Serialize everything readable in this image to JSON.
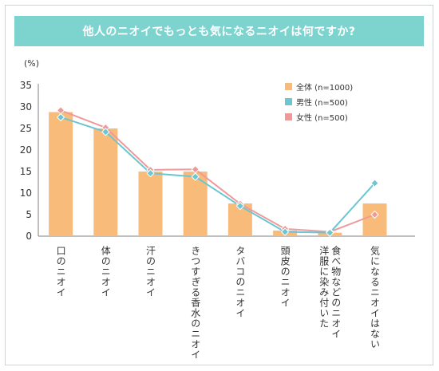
{
  "title": "他人のニオイでもっとも気になるニオイは何ですか?",
  "colors": {
    "banner": "#7dd3ce",
    "overall": "#f9bb79",
    "male": "#6cc6d2",
    "female": "#ee9a9b",
    "axis": "#808080",
    "grid": "#dddddd"
  },
  "chart_data": {
    "type": "bar",
    "y_unit_label": "(%)",
    "ylim": [
      0,
      35
    ],
    "yticks": [
      0,
      5,
      10,
      15,
      20,
      25,
      30,
      35
    ],
    "categories": [
      "口のニオイ",
      "体のニオイ",
      "汗のニオイ",
      "きつすぎる香水のニオイ",
      "タバコのニオイ",
      "頭皮のニオイ",
      "洋服に染み付いた食べ物などのニオイ",
      "気になるニオイはない"
    ],
    "category_lines": [
      [
        "口のニオイ"
      ],
      [
        "体のニオイ"
      ],
      [
        "汗のニオイ"
      ],
      [
        "きつすぎる香水のニオイ"
      ],
      [
        "タバコのニオイ"
      ],
      [
        "頭皮のニオイ"
      ],
      [
        "洋服に染み付いた",
        "食べ物などのニオイ"
      ],
      [
        "気になるニオイはない"
      ]
    ],
    "series": [
      {
        "name": "全体 (n=1000)",
        "kind": "bar",
        "color": "#f9bb79",
        "values": [
          28.8,
          25.0,
          15.0,
          15.0,
          7.6,
          1.3,
          0.8,
          7.6
        ]
      },
      {
        "name": "男性 (n=500)",
        "kind": "line",
        "color": "#6cc6d2",
        "values": [
          27.6,
          24.2,
          14.6,
          13.8,
          7.0,
          1.0,
          0.8,
          12.3
        ]
      },
      {
        "name": "女性 (n=500)",
        "kind": "line",
        "color": "#ee9a9b",
        "values": [
          29.2,
          25.2,
          15.4,
          15.5,
          7.5,
          1.7,
          1.0,
          5.0
        ]
      }
    ],
    "legend_position": "top-right",
    "grid": false
  }
}
